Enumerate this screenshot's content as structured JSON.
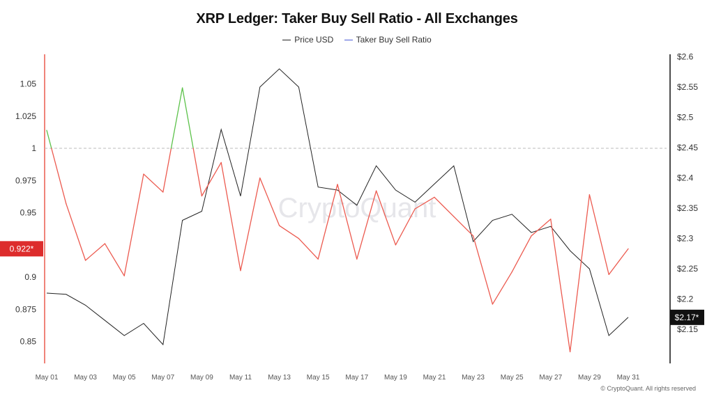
{
  "chart_data": {
    "type": "line",
    "title": "XRP Ledger: Taker Buy Sell Ratio - All Exchanges",
    "x": [
      "May 01",
      "May 02",
      "May 03",
      "May 04",
      "May 05",
      "May 06",
      "May 07",
      "May 08",
      "May 09",
      "May 10",
      "May 11",
      "May 12",
      "May 13",
      "May 14",
      "May 15",
      "May 16",
      "May 17",
      "May 18",
      "May 19",
      "May 20",
      "May 21",
      "May 22",
      "May 23",
      "May 24",
      "May 25",
      "May 26",
      "May 27",
      "May 28",
      "May 29",
      "May 30",
      "May 31"
    ],
    "x_tick_labels": [
      "May 01",
      "May 03",
      "May 05",
      "May 07",
      "May 09",
      "May 11",
      "May 13",
      "May 15",
      "May 17",
      "May 19",
      "May 21",
      "May 23",
      "May 25",
      "May 27",
      "May 29",
      "May 31"
    ],
    "series": [
      {
        "name": "Taker Buy Sell Ratio",
        "axis": "left",
        "legend_color": "#4b5bd6",
        "color_above_1": "#5cc24a",
        "color_below_1": "#ec5a4f",
        "values": [
          1.014,
          0.957,
          0.913,
          0.926,
          0.901,
          0.98,
          0.966,
          1.047,
          0.963,
          0.989,
          0.905,
          0.977,
          0.94,
          0.93,
          0.914,
          0.972,
          0.914,
          0.967,
          0.925,
          0.953,
          0.962,
          0.947,
          0.932,
          0.879,
          0.904,
          0.932,
          0.945,
          0.842,
          0.964,
          0.902,
          0.922
        ]
      },
      {
        "name": "Price USD",
        "axis": "right",
        "color": "#222222",
        "values": [
          2.21,
          2.208,
          2.19,
          2.165,
          2.14,
          2.16,
          2.125,
          2.33,
          2.345,
          2.48,
          2.37,
          2.55,
          2.58,
          2.55,
          2.385,
          2.38,
          2.355,
          2.42,
          2.38,
          2.36,
          2.39,
          2.42,
          2.295,
          2.33,
          2.34,
          2.31,
          2.32,
          2.28,
          2.25,
          2.14,
          2.17
        ]
      }
    ],
    "y_left": {
      "ticks": [
        "0.85",
        "0.875",
        "0.9",
        "0.925",
        "0.95",
        "0.975",
        "1",
        "1.025",
        "1.05"
      ],
      "ylim": [
        0.833,
        1.073
      ],
      "reference_line": 1
    },
    "y_right": {
      "ticks": [
        "$2.15",
        "$2.2",
        "$2.25",
        "$2.3",
        "$2.35",
        "$2.4",
        "$2.45",
        "$2.5",
        "$2.55",
        "$2.6"
      ],
      "ylim": [
        2.094,
        2.604
      ]
    },
    "left_marker": {
      "label": "0.922*",
      "value": 0.922,
      "color": "#dd2c2c"
    },
    "right_marker": {
      "label": "$2.17*",
      "value": 2.17,
      "color": "#111111"
    },
    "watermark": "CryptoQuant",
    "grid": false,
    "legend_position": "top-center"
  },
  "footer": {
    "copyright": "© CryptoQuant. All rights reserved"
  }
}
